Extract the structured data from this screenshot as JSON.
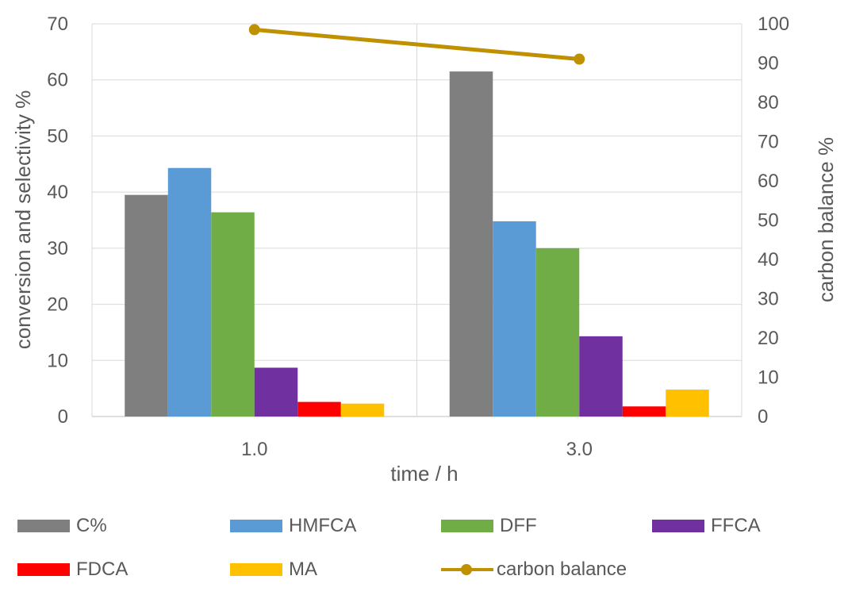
{
  "chart_data": {
    "type": "bar",
    "categories": [
      "1.0",
      "3.0"
    ],
    "xlabel": "time / h",
    "ylabel": "conversion and selectivity %",
    "y2label": "carbon balance %",
    "ylim": [
      0,
      70
    ],
    "y_ticks": [
      0,
      10,
      20,
      30,
      40,
      50,
      60,
      70
    ],
    "y2lim": [
      0,
      100
    ],
    "y2_ticks": [
      0,
      10,
      20,
      30,
      40,
      50,
      60,
      70,
      80,
      90,
      100
    ],
    "gridlines": true,
    "series": [
      {
        "name": "C%",
        "color": "#7f7f7f",
        "values": [
          39.5,
          61.5
        ]
      },
      {
        "name": "HMFCA",
        "color": "#5b9bd5",
        "values": [
          44.3,
          34.8
        ]
      },
      {
        "name": "DFF",
        "color": "#70ad47",
        "values": [
          36.4,
          30.0
        ]
      },
      {
        "name": "FFCA",
        "color": "#7030a0",
        "values": [
          8.7,
          14.3
        ]
      },
      {
        "name": "FDCA",
        "color": "#ff0000",
        "values": [
          2.6,
          1.8
        ]
      },
      {
        "name": "MA",
        "color": "#ffc000",
        "values": [
          2.3,
          4.8
        ]
      }
    ],
    "line_series": {
      "name": "carbon balance",
      "axis": "secondary",
      "color": "#bf9000",
      "values": [
        98.5,
        91.0
      ]
    },
    "legend_position": "bottom"
  }
}
